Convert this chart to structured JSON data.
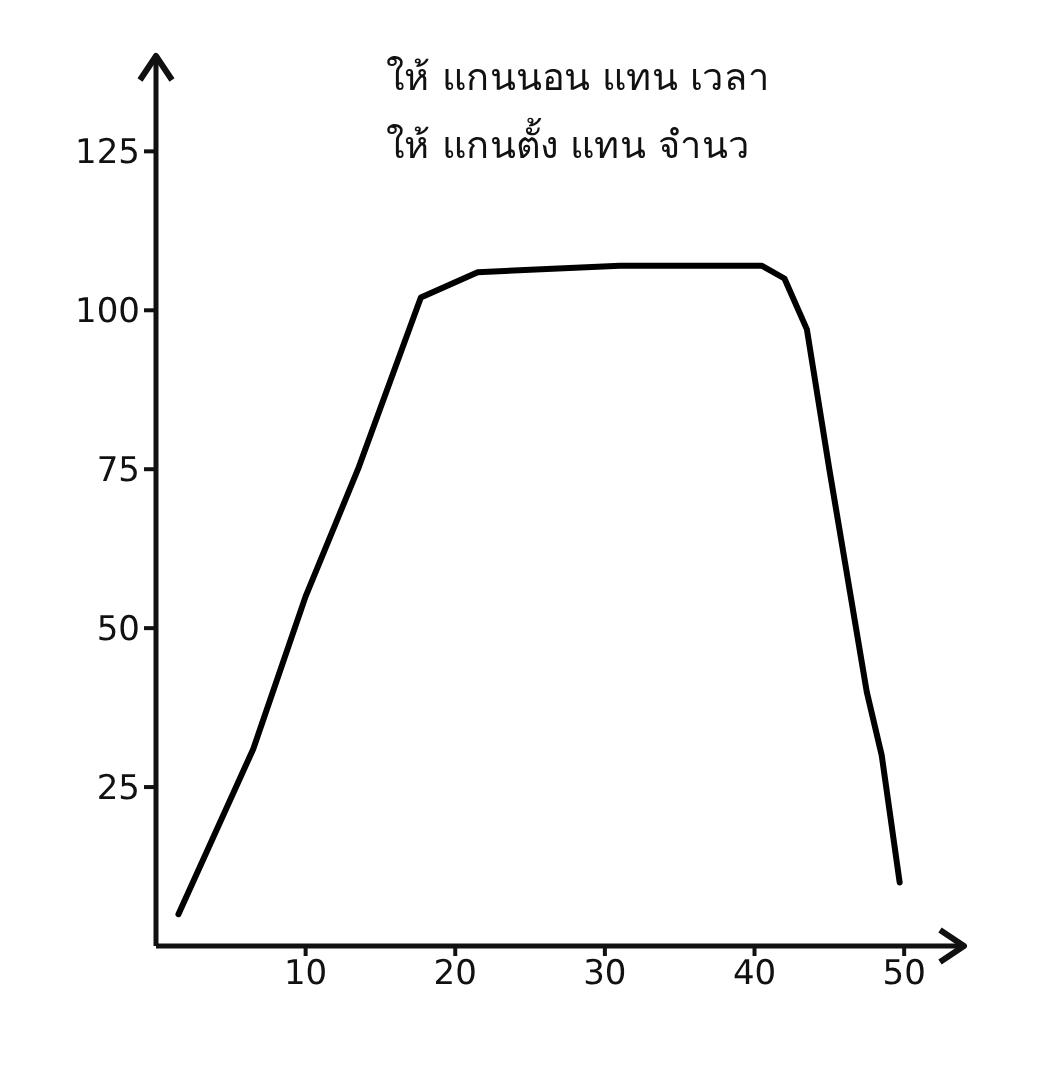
{
  "chart_data": {
    "type": "line",
    "annotations": [
      "ให้ แกนนอน แทน เวลา",
      "ให้ แกนตั้ง แทน จำนว"
    ],
    "x": [
      1.5,
      6.5,
      10,
      13.5,
      17.7,
      21.5,
      31,
      40.5,
      42,
      43.5,
      45,
      47.5,
      48.5,
      49.7
    ],
    "series": [
      {
        "color": "#000000",
        "values": [
          5,
          31,
          55,
          75,
          102,
          106,
          107,
          107,
          105,
          97,
          75,
          40,
          30,
          10
        ]
      }
    ],
    "xlim": [
      0,
      54
    ],
    "xticks": [
      10,
      20,
      30,
      40,
      50
    ],
    "ylim": [
      0,
      140
    ],
    "yticks": [
      25,
      50,
      75,
      100,
      125
    ],
    "grid": false,
    "legend": false,
    "marker": "none",
    "line_style": "solid"
  }
}
